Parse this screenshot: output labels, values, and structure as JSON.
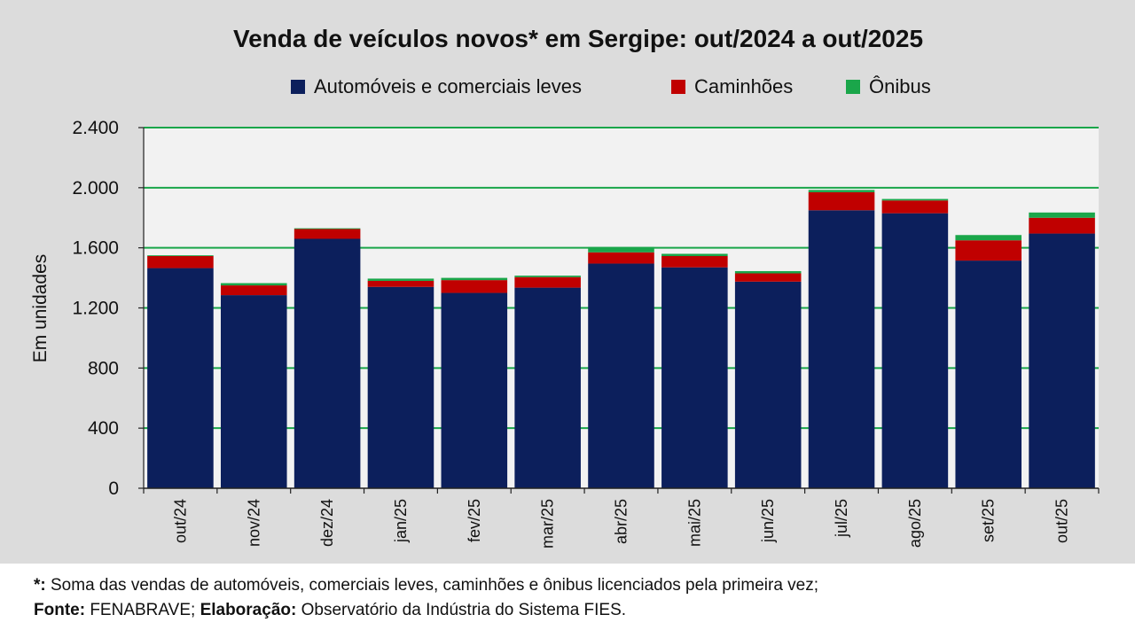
{
  "chart_data": {
    "type": "bar",
    "stacked": true,
    "title": "Venda de veículos novos* em Sergipe: out/2024 a out/2025",
    "ylabel": "Em unidades",
    "xlabel": "",
    "ylim": [
      0,
      2400
    ],
    "yticks": [
      0,
      400,
      800,
      1200,
      1600,
      2000,
      2400
    ],
    "ytick_labels": [
      "0",
      "400",
      "800",
      "1.200",
      "1.600",
      "2.000",
      "2.400"
    ],
    "grid": true,
    "legend_position": "top",
    "categories": [
      "out/24",
      "nov/24",
      "dez/24",
      "jan/25",
      "fev/25",
      "mar/25",
      "abr/25",
      "mai/25",
      "jun/25",
      "jul/25",
      "ago/25",
      "set/25",
      "out/25"
    ],
    "series": [
      {
        "name": "Automóveis e comerciais leves",
        "color": "#0c1f5c",
        "values": [
          1465,
          1285,
          1660,
          1340,
          1300,
          1335,
          1495,
          1470,
          1375,
          1850,
          1830,
          1515,
          1695
        ]
      },
      {
        "name": "Caminhões",
        "color": "#c00000",
        "values": [
          80,
          65,
          65,
          40,
          85,
          70,
          75,
          75,
          55,
          120,
          85,
          135,
          105
        ]
      },
      {
        "name": "Ônibus",
        "color": "#1aa64a",
        "values": [
          5,
          15,
          5,
          15,
          15,
          10,
          35,
          15,
          15,
          15,
          10,
          35,
          35
        ]
      }
    ]
  },
  "footer": {
    "note_label": "*:",
    "note_text": " Soma das vendas de automóveis, comerciais leves, caminhões e ônibus licenciados pela primeira vez;",
    "source_label": "Fonte:",
    "source_text": " FENABRAVE; ",
    "elab_label": "Elaboração:",
    "elab_text": " Observatório da Indústria do Sistema FIES."
  }
}
